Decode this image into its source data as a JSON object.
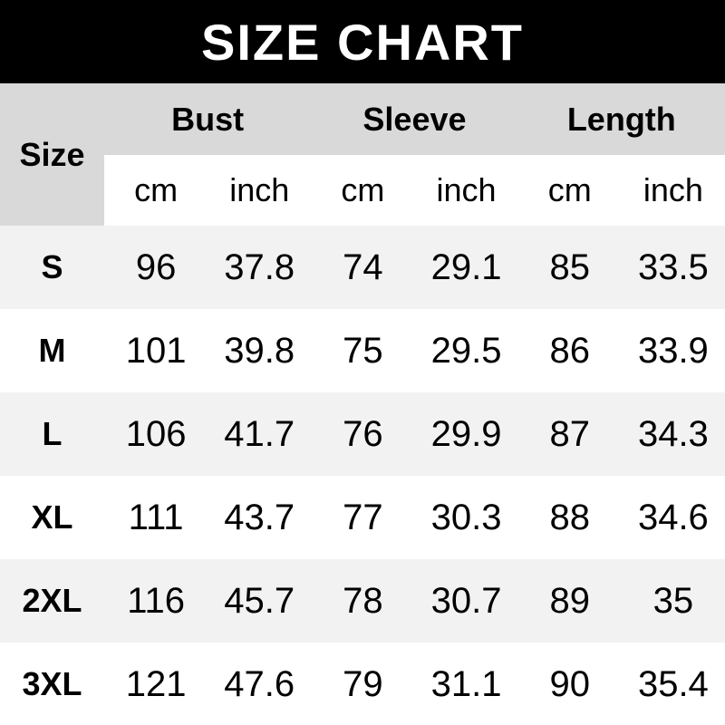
{
  "banner": {
    "title": "SIZE CHART"
  },
  "header": {
    "size": "Size",
    "groups": [
      "Bust",
      "Sleeve",
      "Length"
    ],
    "units": [
      "cm",
      "inch",
      "cm",
      "inch",
      "cm",
      "inch"
    ]
  },
  "chart_data": {
    "type": "table",
    "title": "SIZE CHART",
    "columns": [
      "Size",
      "Bust cm",
      "Bust inch",
      "Sleeve cm",
      "Sleeve inch",
      "Length cm",
      "Length inch"
    ],
    "rows": [
      [
        "S",
        96,
        37.8,
        74,
        29.1,
        85,
        33.5
      ],
      [
        "M",
        101,
        39.8,
        75,
        29.5,
        86,
        33.9
      ],
      [
        "L",
        106,
        41.7,
        76,
        29.9,
        87,
        34.3
      ],
      [
        "XL",
        111,
        43.7,
        77,
        30.3,
        88,
        34.6
      ],
      [
        "2XL",
        116,
        45.7,
        78,
        30.7,
        89,
        35
      ],
      [
        "3XL",
        121,
        47.6,
        79,
        31.1,
        90,
        35.4
      ]
    ]
  },
  "colors": {
    "banner_bg": "#000000",
    "banner_text": "#ffffff",
    "header_bg": "#d9d9d9",
    "stripe_bg": "#f2f2f2",
    "row_bg": "#ffffff",
    "text": "#000000"
  }
}
